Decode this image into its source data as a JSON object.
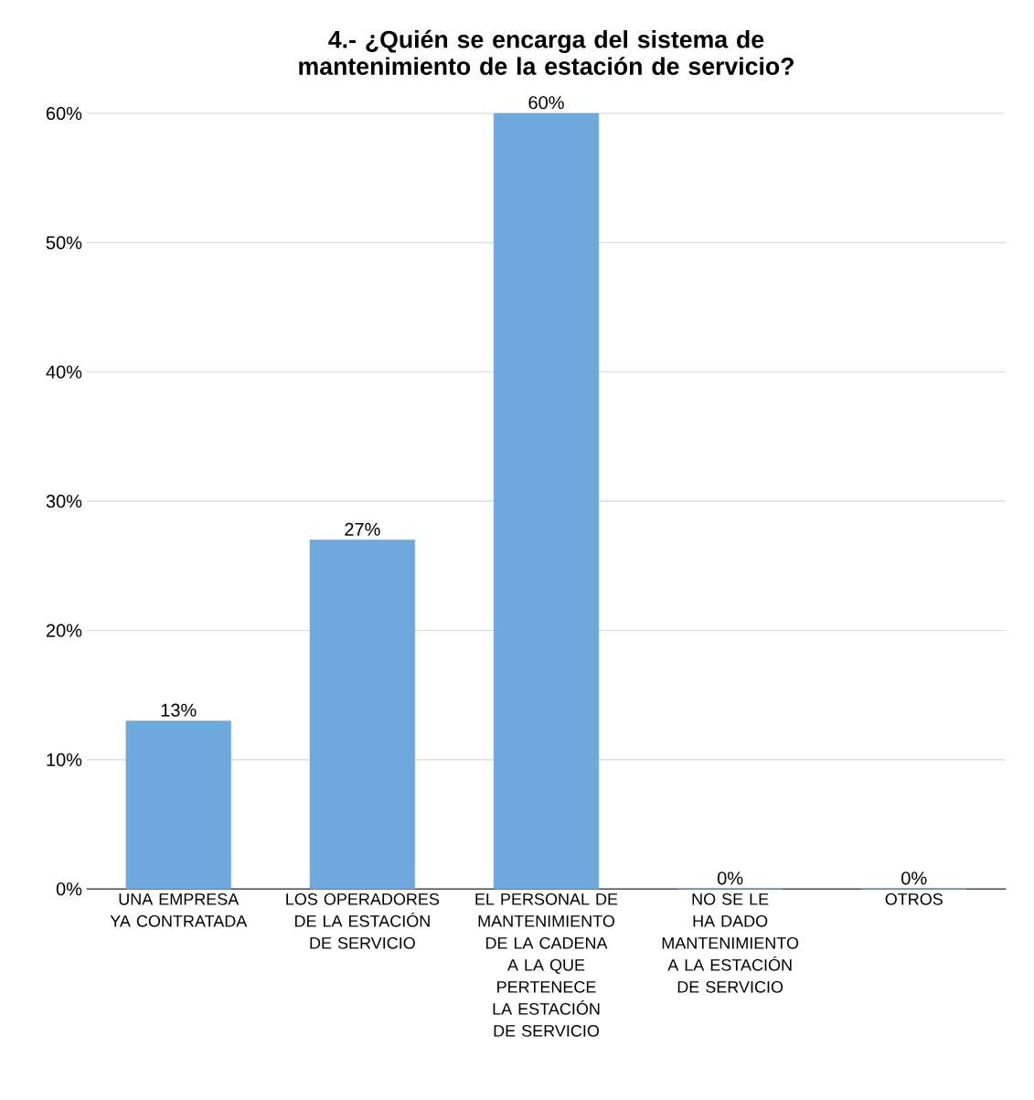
{
  "chart_data": {
    "type": "bar",
    "title": "4.- ¿Quién se encarga del sistema de mantenimiento de la estación de servicio?",
    "categories": [
      "UNA EMPRESA YA CONTRATADA",
      "LOS OPERADORES DE LA ESTACIÓN DE SERVICIO",
      "EL PERSONAL DE MANTENIMIENTO DE LA CADENA A LA QUE PERTENECE LA ESTACIÓN DE SERVICIO",
      "NO SE LE HA DADO MANTENIMIENTO A LA ESTACIÓN DE SERVICIO",
      "OTROS"
    ],
    "values": [
      13,
      27,
      60,
      0,
      0
    ],
    "value_labels": [
      "13%",
      "27%",
      "60%",
      "0%",
      "0%"
    ],
    "color": "#6fa8dc",
    "ylim": [
      0,
      60
    ],
    "yticks": [
      {
        "value": 0,
        "label": "0%"
      },
      {
        "value": 10,
        "label": "10%"
      },
      {
        "value": 20,
        "label": "20%"
      },
      {
        "value": 30,
        "label": "30%"
      },
      {
        "value": 40,
        "label": "40%"
      },
      {
        "value": 50,
        "label": "50%"
      },
      {
        "value": 60,
        "label": "60%"
      }
    ],
    "grid": "y"
  }
}
